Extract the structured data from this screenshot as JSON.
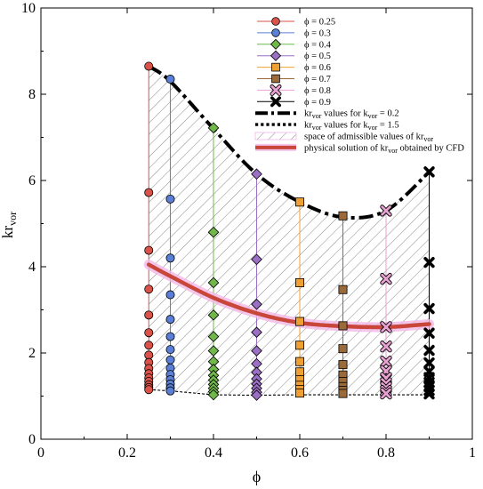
{
  "chart_data": {
    "type": "scatter",
    "xlabel": "ϕ",
    "ylabel": "kr",
    "ylabel_sub": "vor",
    "xlim": [
      0,
      1
    ],
    "ylim": [
      0,
      10
    ],
    "x_ticks": [
      "0",
      "0.2",
      "0.4",
      "0.6",
      "0.8",
      "1"
    ],
    "x_tick_values": [
      0,
      0.2,
      0.4,
      0.6,
      0.8,
      1
    ],
    "y_ticks": [
      "0",
      "2",
      "4",
      "6",
      "8",
      "10"
    ],
    "y_tick_values": [
      0,
      2,
      4,
      6,
      8,
      10
    ],
    "series": [
      {
        "name": "ϕ = 0.25",
        "phi": 0.25,
        "marker": "circle",
        "color": "#d9534a",
        "values": [
          8.65,
          5.72,
          4.38,
          3.48,
          2.88,
          2.47,
          2.18,
          1.95,
          1.78,
          1.64,
          1.52,
          1.42,
          1.34,
          1.26,
          1.2,
          1.15
        ]
      },
      {
        "name": "ϕ = 0.3",
        "phi": 0.3,
        "marker": "circle",
        "color": "#5b7fd4",
        "values": [
          8.35,
          5.57,
          4.2,
          3.35,
          2.78,
          2.38,
          2.08,
          1.84,
          1.65,
          1.5,
          1.38,
          1.28,
          1.19,
          1.12
        ]
      },
      {
        "name": "ϕ = 0.4",
        "phi": 0.4,
        "marker": "diamond",
        "color": "#6fb849",
        "values": [
          7.22,
          4.8,
          3.63,
          2.88,
          2.38,
          2.05,
          1.8,
          1.62,
          1.48,
          1.37,
          1.27,
          1.18,
          1.1,
          1.03
        ]
      },
      {
        "name": "ϕ = 0.5",
        "phi": 0.5,
        "marker": "diamond",
        "color": "#9b6fc4",
        "values": [
          6.15,
          4.17,
          3.13,
          2.48,
          2.05,
          1.75,
          1.55,
          1.4,
          1.28,
          1.18,
          1.09,
          1.02
        ]
      },
      {
        "name": "ϕ = 0.6",
        "phi": 0.6,
        "marker": "square",
        "color": "#f0a032",
        "values": [
          5.5,
          3.63,
          2.73,
          2.18,
          1.8,
          1.56,
          1.38,
          1.25,
          1.15,
          1.07
        ]
      },
      {
        "name": "ϕ = 0.7",
        "phi": 0.7,
        "marker": "square",
        "color": "#9a6a3a",
        "values": [
          5.18,
          3.47,
          2.63,
          2.1,
          1.73,
          1.49,
          1.34,
          1.22,
          1.13,
          1.06
        ]
      },
      {
        "name": "ϕ = 0.8",
        "phi": 0.8,
        "marker": "xbold",
        "color": "#e7a2d2",
        "values": [
          5.3,
          3.72,
          2.6,
          2.15,
          1.8,
          1.58,
          1.42,
          1.3,
          1.2,
          1.12,
          1.06
        ]
      },
      {
        "name": "ϕ = 0.9",
        "phi": 0.9,
        "marker": "xbold",
        "color": "#000000",
        "values": [
          6.2,
          4.1,
          3.03,
          2.46,
          2.06,
          1.77,
          1.57,
          1.43,
          1.32,
          1.22,
          1.13,
          1.05
        ]
      }
    ],
    "lines": [
      {
        "name": "kr_vor values for k_vor = 0.2",
        "label_parts": [
          "kr",
          "vor",
          " values for k",
          "vor",
          " = 0.2"
        ],
        "style": "dashdot",
        "x": [
          0.25,
          0.3,
          0.4,
          0.5,
          0.6,
          0.7,
          0.8,
          0.9
        ],
        "y": [
          8.65,
          8.3,
          7.2,
          6.15,
          5.5,
          5.15,
          5.3,
          6.2
        ]
      },
      {
        "name": "kr_vor values for k_vor = 1.5",
        "label_parts": [
          "kr",
          "vor",
          " values for k",
          "vor",
          " = 1.5"
        ],
        "style": "dotted",
        "x": [
          0.25,
          0.3,
          0.4,
          0.5,
          0.6,
          0.7,
          0.8,
          0.9
        ],
        "y": [
          1.15,
          1.12,
          1.03,
          1.02,
          1.03,
          1.03,
          1.03,
          1.03
        ]
      },
      {
        "name": "space of admissible values of kr_vor",
        "label_parts": [
          "space of admissible values of kr",
          "vor"
        ],
        "style": "hatch"
      },
      {
        "name": "physical solution of kr_vor obtained by CFD",
        "label_parts": [
          "physical solution of kr",
          "vor",
          " obtained by CFD"
        ],
        "style": "thick",
        "color": "#c8463a",
        "x": [
          0.25,
          0.3,
          0.4,
          0.5,
          0.6,
          0.7,
          0.8,
          0.9
        ],
        "y": [
          4.05,
          3.78,
          3.28,
          2.92,
          2.7,
          2.62,
          2.6,
          2.67
        ]
      }
    ],
    "legend_position": "top-right",
    "grid": false
  }
}
